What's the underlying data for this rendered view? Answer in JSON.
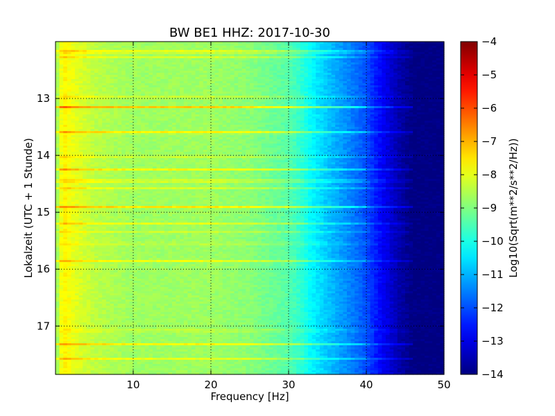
{
  "chart_data": {
    "type": "heatmap",
    "title": "BW BE1 HHZ: 2017-10-30",
    "xlabel": "Frequency [Hz]",
    "ylabel": "Lokalzeit (UTC + 1 Stunde)",
    "xlim": [
      0,
      50
    ],
    "ylim": [
      17.85,
      12.0
    ],
    "x_ticks": [
      10,
      20,
      30,
      40,
      50
    ],
    "y_ticks": [
      13,
      14,
      15,
      16,
      17
    ],
    "grid": true,
    "colormap": "jet",
    "colorbar": {
      "label": "Log10(Sqrt(m**2/s**2/Hz))",
      "min": -14,
      "max": -4,
      "ticks": [
        -4,
        -5,
        -6,
        -7,
        -8,
        -9,
        -10,
        -11,
        -12,
        -13,
        -14
      ]
    },
    "spectral_profile": {
      "frequency_hz": [
        0,
        0.5,
        1,
        2,
        3,
        5,
        8,
        10,
        15,
        20,
        25,
        30,
        32,
        33,
        35,
        38,
        40,
        42,
        44,
        46,
        50
      ],
      "log10_amplitude": [
        -9.0,
        -8.2,
        -7.6,
        -7.9,
        -8.1,
        -8.4,
        -8.6,
        -8.7,
        -8.7,
        -8.7,
        -8.9,
        -9.4,
        -9.9,
        -10.3,
        -10.8,
        -11.5,
        -12.0,
        -12.8,
        -13.5,
        -14.0,
        -14.0
      ]
    },
    "high_amplitude_bands": [
      {
        "time": 12.18,
        "log10_amplitude_boost": 1.4
      },
      {
        "time": 12.28,
        "log10_amplitude_boost": 0.7
      },
      {
        "time": 12.98,
        "log10_amplitude_boost": 0.6
      },
      {
        "time": 13.15,
        "log10_amplitude_boost": 1.5
      },
      {
        "time": 13.6,
        "log10_amplitude_boost": 1.5
      },
      {
        "time": 14.02,
        "log10_amplitude_boost": 0.6
      },
      {
        "time": 14.25,
        "log10_amplitude_boost": 1.0
      },
      {
        "time": 14.45,
        "log10_amplitude_boost": 1.2
      },
      {
        "time": 14.58,
        "log10_amplitude_boost": 0.6
      },
      {
        "time": 14.9,
        "log10_amplitude_boost": 1.5
      },
      {
        "time": 15.2,
        "log10_amplitude_boost": 0.7
      },
      {
        "time": 15.35,
        "log10_amplitude_boost": 0.5
      },
      {
        "time": 15.55,
        "log10_amplitude_boost": 0.5
      },
      {
        "time": 15.85,
        "log10_amplitude_boost": 1.0
      },
      {
        "time": 17.08,
        "log10_amplitude_boost": 0.6
      },
      {
        "time": 17.32,
        "log10_amplitude_boost": 1.0
      },
      {
        "time": 17.57,
        "log10_amplitude_boost": 0.9
      }
    ]
  }
}
